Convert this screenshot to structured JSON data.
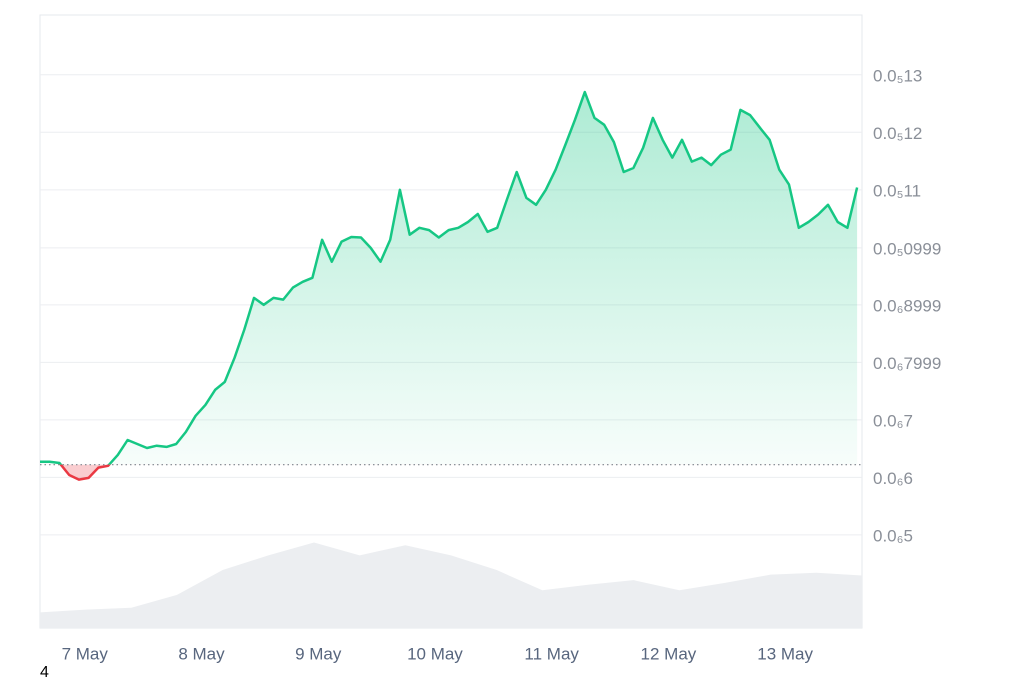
{
  "chart_data": {
    "type": "line",
    "series": [
      {
        "color": "#16c784",
        "down_color": "#ea3943",
        "values": [
          6.27e-07,
          6.27e-07,
          6.25e-07,
          6.04e-07,
          5.96e-07,
          5.99e-07,
          6.17e-07,
          6.2e-07,
          6.39e-07,
          6.65e-07,
          6.58e-07,
          6.51e-07,
          6.55e-07,
          6.53e-07,
          6.58e-07,
          6.79e-07,
          7.07e-07,
          7.26e-07,
          7.52e-07,
          7.66e-07,
          8.08e-07,
          8.57e-07,
          9.12e-07,
          9e-07,
          9.12e-07,
          9.09e-07,
          9.3e-07,
          9.4e-07,
          9.47e-07,
          1.013e-06,
          9.75e-07,
          1.01e-06,
          1.018e-06,
          1.017e-06,
          9.99e-07,
          9.75e-07,
          1.013e-06,
          1.1e-06,
          1.022e-06,
          1.034e-06,
          1.03e-06,
          1.017e-06,
          1.03e-06,
          1.034e-06,
          1.044e-06,
          1.058e-06,
          1.027e-06,
          1.034e-06,
          1.083e-06,
          1.131e-06,
          1.086e-06,
          1.074e-06,
          1.1e-06,
          1.135e-06,
          1.178e-06,
          1.222e-06,
          1.27e-06,
          1.225e-06,
          1.213e-06,
          1.183e-06,
          1.131e-06,
          1.138e-06,
          1.173e-06,
          1.225e-06,
          1.187e-06,
          1.156e-06,
          1.187e-06,
          1.149e-06,
          1.156e-06,
          1.143e-06,
          1.161e-06,
          1.17e-06,
          1.239e-06,
          1.23e-06,
          1.208e-06,
          1.187e-06,
          1.135e-06,
          1.109e-06,
          1.034e-06,
          1.044e-06,
          1.057e-06,
          1.074e-06,
          1.044e-06,
          1.034e-06,
          1.104e-06
        ]
      }
    ],
    "baseline": 6.22e-07,
    "xlim": [
      0,
      84.5
    ],
    "xticks": [
      {
        "value": 4.6,
        "label": "7 May"
      },
      {
        "value": 16.6,
        "label": "8 May"
      },
      {
        "value": 28.6,
        "label": "9 May"
      },
      {
        "value": 40.6,
        "label": "10 May"
      },
      {
        "value": 52.6,
        "label": "11 May"
      },
      {
        "value": 64.6,
        "label": "12 May"
      },
      {
        "value": 76.6,
        "label": "13 May"
      }
    ],
    "ylim": [
      3.38e-07,
      1.404e-06
    ],
    "yticks": [
      {
        "value": 1.3e-06,
        "label": "0.0₅13"
      },
      {
        "value": 1.2e-06,
        "label": "0.0₅12"
      },
      {
        "value": 1.1e-06,
        "label": "0.0₅11"
      },
      {
        "value": 9.99e-07,
        "label": "0.0₅0999"
      },
      {
        "value": 8.999e-07,
        "label": "0.0₆8999"
      },
      {
        "value": 7.999e-07,
        "label": "0.0₆7999"
      },
      {
        "value": 7e-07,
        "label": "0.0₆7"
      },
      {
        "value": 6e-07,
        "label": "0.0₆6"
      },
      {
        "value": 5e-07,
        "label": "0.0₆5"
      }
    ],
    "grid": true,
    "volume": {
      "color": "#eceef1",
      "ylim": [
        0,
        100
      ],
      "values": [
        17,
        20,
        22,
        36,
        63,
        79,
        93,
        79,
        90,
        79,
        63,
        41,
        47,
        52,
        41,
        49,
        58,
        60,
        57
      ]
    },
    "footnote": "4"
  }
}
